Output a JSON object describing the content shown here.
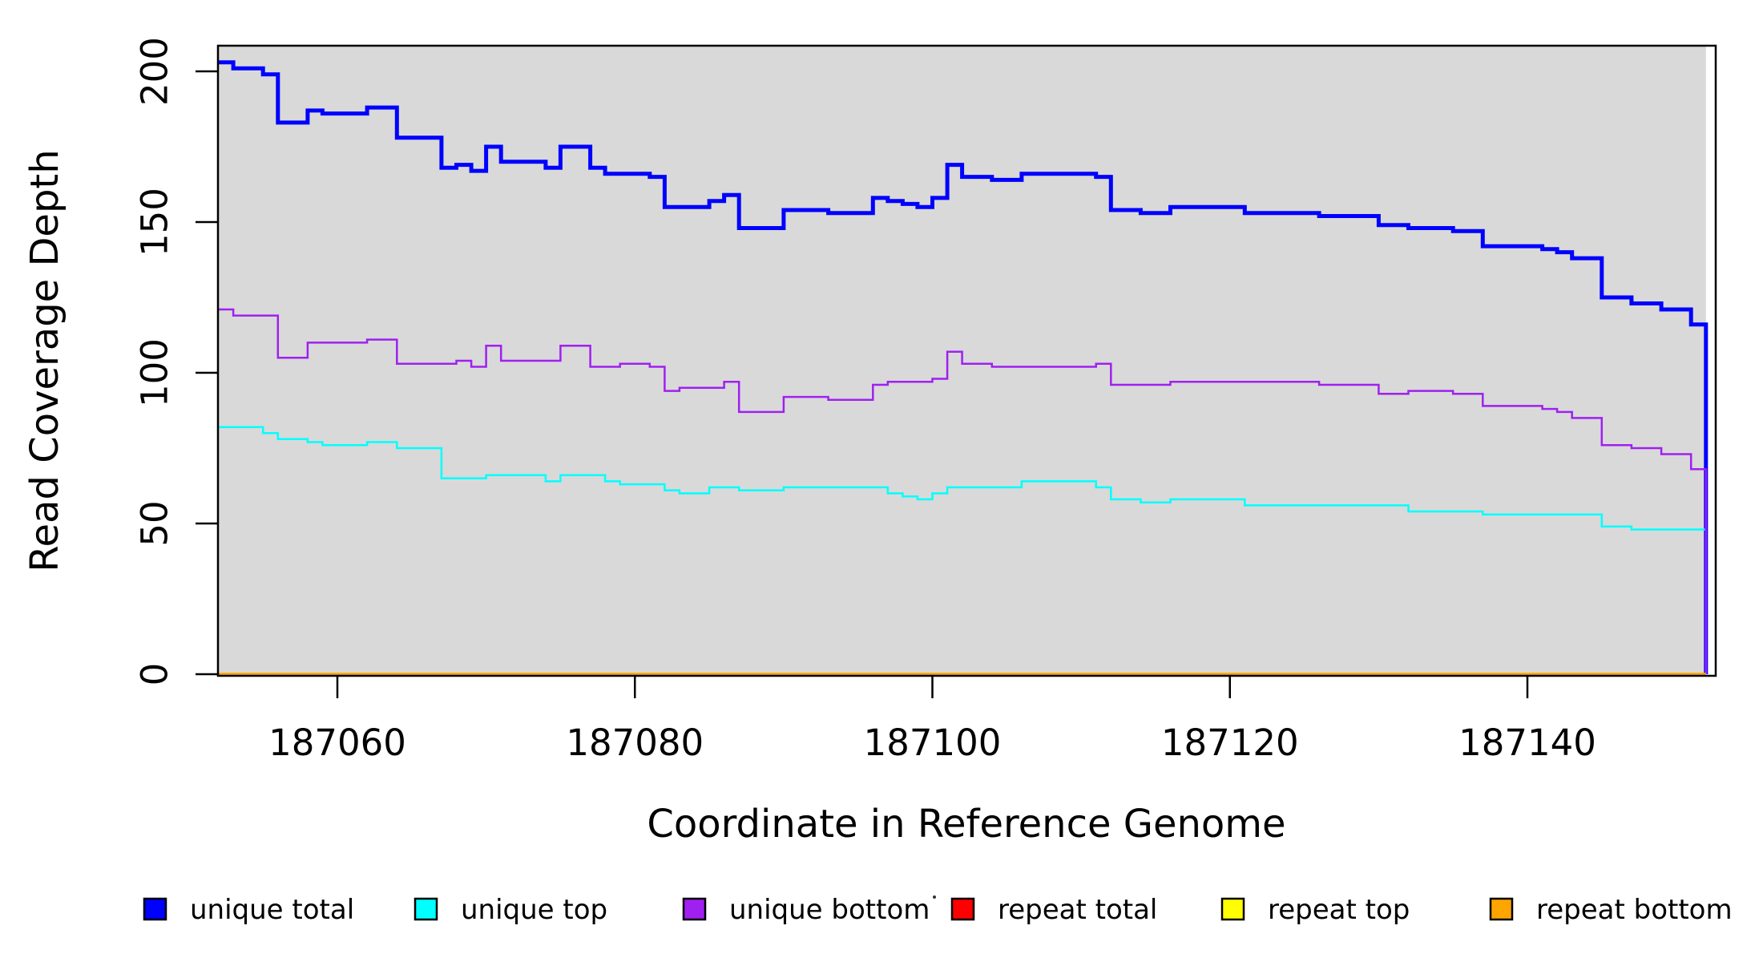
{
  "chart_data": {
    "type": "line",
    "subtype": "step-coverage-plot",
    "title": "",
    "xlabel": "Coordinate in Reference Genome",
    "ylabel": "Read Coverage Depth",
    "x_ticks": [
      187060,
      187080,
      187100,
      187120,
      187140
    ],
    "y_ticks": [
      0,
      50,
      100,
      150,
      200
    ],
    "xlim": [
      187051.97,
      187152.7
    ],
    "ylim": [
      0,
      209
    ],
    "data_x_start": 187052,
    "data_x_end": 187152,
    "plot_background": "#D9D9D9",
    "grid": "off",
    "legend_position": "bottom",
    "series": [
      {
        "name": "unique total",
        "color": "#0000FF",
        "width": 5,
        "points": [
          [
            187052,
            203
          ],
          [
            187053,
            201
          ],
          [
            187055,
            199
          ],
          [
            187056,
            183
          ],
          [
            187058,
            187
          ],
          [
            187059,
            186
          ],
          [
            187062,
            188
          ],
          [
            187064,
            178
          ],
          [
            187067,
            168
          ],
          [
            187068,
            169
          ],
          [
            187069,
            167
          ],
          [
            187070,
            175
          ],
          [
            187071,
            170
          ],
          [
            187074,
            168
          ],
          [
            187075,
            175
          ],
          [
            187077,
            168
          ],
          [
            187078,
            166
          ],
          [
            187081,
            165
          ],
          [
            187082,
            155
          ],
          [
            187085,
            157
          ],
          [
            187086,
            159
          ],
          [
            187087,
            148
          ],
          [
            187090,
            154
          ],
          [
            187093,
            153
          ],
          [
            187096,
            158
          ],
          [
            187097,
            157
          ],
          [
            187098,
            156
          ],
          [
            187099,
            155
          ],
          [
            187100,
            158
          ],
          [
            187101,
            169
          ],
          [
            187102,
            165
          ],
          [
            187104,
            164
          ],
          [
            187106,
            166
          ],
          [
            187111,
            165
          ],
          [
            187112,
            154
          ],
          [
            187114,
            153
          ],
          [
            187116,
            155
          ],
          [
            187121,
            153
          ],
          [
            187126,
            152
          ],
          [
            187130,
            149
          ],
          [
            187132,
            148
          ],
          [
            187135,
            147
          ],
          [
            187137,
            142
          ],
          [
            187141,
            141
          ],
          [
            187142,
            140
          ],
          [
            187143,
            138
          ],
          [
            187145,
            125
          ],
          [
            187147,
            123
          ],
          [
            187149,
            121
          ],
          [
            187151,
            116
          ],
          [
            187152,
            0
          ]
        ]
      },
      {
        "name": "unique top",
        "color": "#00FFFF",
        "width": 2.5,
        "points": [
          [
            187052,
            82
          ],
          [
            187055,
            80
          ],
          [
            187056,
            78
          ],
          [
            187058,
            77
          ],
          [
            187059,
            76
          ],
          [
            187062,
            77
          ],
          [
            187064,
            75
          ],
          [
            187067,
            65
          ],
          [
            187070,
            66
          ],
          [
            187074,
            64
          ],
          [
            187075,
            66
          ],
          [
            187078,
            64
          ],
          [
            187079,
            63
          ],
          [
            187082,
            61
          ],
          [
            187083,
            60
          ],
          [
            187085,
            62
          ],
          [
            187087,
            61
          ],
          [
            187090,
            62
          ],
          [
            187097,
            60
          ],
          [
            187098,
            59
          ],
          [
            187099,
            58
          ],
          [
            187100,
            60
          ],
          [
            187101,
            62
          ],
          [
            187106,
            64
          ],
          [
            187111,
            62
          ],
          [
            187112,
            58
          ],
          [
            187114,
            57
          ],
          [
            187116,
            58
          ],
          [
            187121,
            56
          ],
          [
            187132,
            54
          ],
          [
            187137,
            53
          ],
          [
            187145,
            49
          ],
          [
            187147,
            48
          ],
          [
            187152,
            0
          ]
        ]
      },
      {
        "name": "unique bottom",
        "color": "#A020F0",
        "width": 2.5,
        "points": [
          [
            187052,
            121
          ],
          [
            187053,
            119
          ],
          [
            187056,
            105
          ],
          [
            187058,
            110
          ],
          [
            187062,
            111
          ],
          [
            187064,
            103
          ],
          [
            187068,
            104
          ],
          [
            187069,
            102
          ],
          [
            187070,
            109
          ],
          [
            187071,
            104
          ],
          [
            187075,
            109
          ],
          [
            187077,
            102
          ],
          [
            187079,
            103
          ],
          [
            187081,
            102
          ],
          [
            187082,
            94
          ],
          [
            187083,
            95
          ],
          [
            187086,
            97
          ],
          [
            187087,
            87
          ],
          [
            187090,
            92
          ],
          [
            187093,
            91
          ],
          [
            187096,
            96
          ],
          [
            187097,
            97
          ],
          [
            187100,
            98
          ],
          [
            187101,
            107
          ],
          [
            187102,
            103
          ],
          [
            187104,
            102
          ],
          [
            187111,
            103
          ],
          [
            187112,
            96
          ],
          [
            187116,
            97
          ],
          [
            187126,
            96
          ],
          [
            187130,
            93
          ],
          [
            187132,
            94
          ],
          [
            187135,
            93
          ],
          [
            187137,
            89
          ],
          [
            187141,
            88
          ],
          [
            187142,
            87
          ],
          [
            187143,
            85
          ],
          [
            187145,
            76
          ],
          [
            187147,
            75
          ],
          [
            187149,
            73
          ],
          [
            187151,
            68
          ],
          [
            187152,
            0
          ]
        ]
      },
      {
        "name": "repeat total",
        "color": "#FF0000",
        "width": 3,
        "points": [
          [
            187052,
            0
          ],
          [
            187152,
            0
          ]
        ]
      },
      {
        "name": "repeat top",
        "color": "#FFFF00",
        "width": 3,
        "points": [
          [
            187052,
            0
          ],
          [
            187152,
            0
          ]
        ]
      },
      {
        "name": "repeat bottom",
        "color": "#FFA500",
        "width": 3.5,
        "points": [
          [
            187052,
            0
          ],
          [
            187152,
            0
          ]
        ]
      }
    ],
    "legend": [
      {
        "label": "unique total",
        "color": "#0000FF"
      },
      {
        "label": "unique top",
        "color": "#00FFFF"
      },
      {
        "label": "unique bottom",
        "color": "#A020F0"
      },
      {
        "label": "repeat total",
        "color": "#FF0000"
      },
      {
        "label": "repeat top",
        "color": "#FFFF00"
      },
      {
        "label": "repeat bottom",
        "color": "#FFA500"
      }
    ]
  }
}
